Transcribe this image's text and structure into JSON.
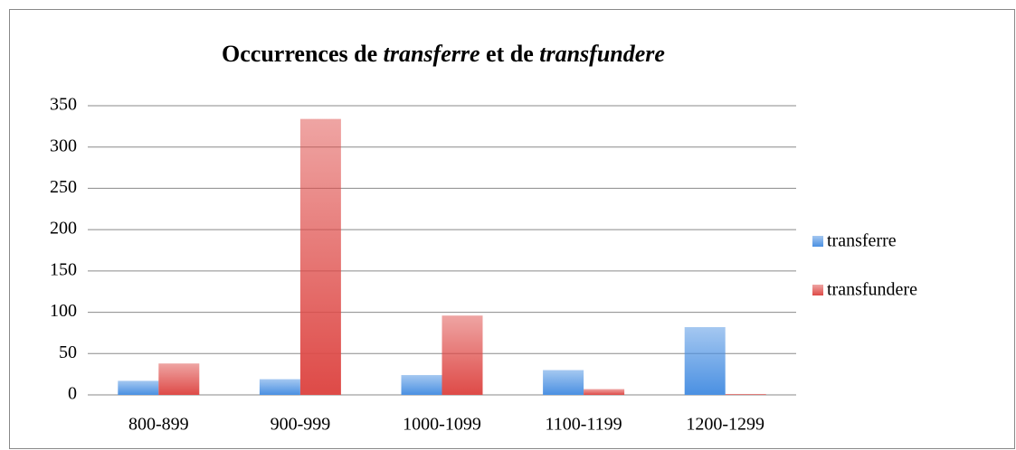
{
  "chart_data": {
    "type": "bar",
    "title": "Occurrences de transferre et de transfundere",
    "categories": [
      "800-899",
      "900-999",
      "1000-1099",
      "1100-1199",
      "1200-1299"
    ],
    "series": [
      {
        "name": "transferre",
        "color": "#4a90e2",
        "values": [
          17,
          19,
          24,
          30,
          82
        ]
      },
      {
        "name": "transfundere",
        "color": "#de4a47",
        "values": [
          38,
          334,
          96,
          7,
          1
        ]
      }
    ],
    "ylim": [
      0,
      350
    ],
    "yticks": [
      0,
      50,
      100,
      150,
      200,
      250,
      300,
      350
    ],
    "grid": true,
    "legend": "right"
  }
}
